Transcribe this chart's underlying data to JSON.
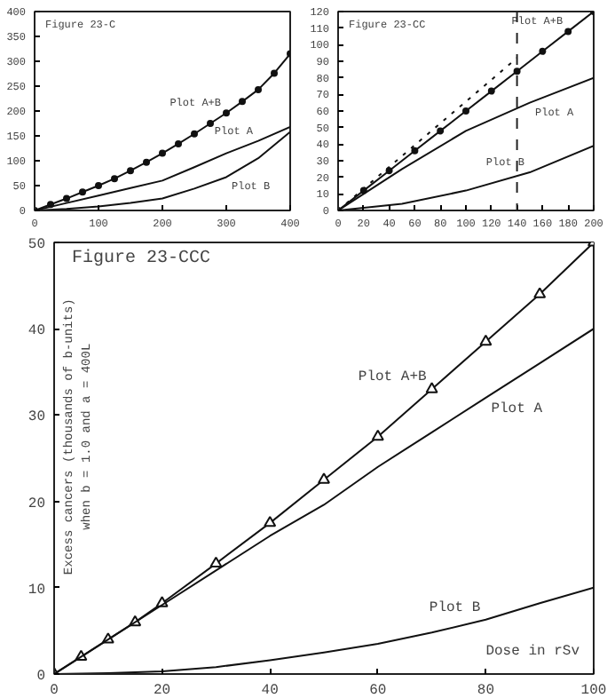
{
  "chart_data": [
    {
      "type": "line",
      "title": "Figure 23-C",
      "xlim": [
        0,
        400
      ],
      "ylim": [
        0,
        400
      ],
      "xticks": [
        0,
        100,
        200,
        300,
        400
      ],
      "yticks": [
        0,
        50,
        100,
        150,
        200,
        250,
        300,
        350,
        400
      ],
      "grid": false,
      "line_style": "solid",
      "series": [
        {
          "name": "Plot A+B",
          "color": "#111111",
          "marker": "circle",
          "x": [
            0,
            25,
            50,
            75,
            100,
            125,
            150,
            175,
            200,
            225,
            250,
            275,
            300,
            325,
            350,
            375,
            400
          ],
          "values": [
            0,
            12,
            24,
            37,
            50,
            64,
            80,
            97,
            115,
            134,
            154,
            175,
            196,
            219,
            243,
            276,
            315
          ]
        },
        {
          "name": "Plot A",
          "color": "#111111",
          "marker": "none",
          "x": [
            0,
            50,
            100,
            150,
            200,
            250,
            300,
            350,
            400
          ],
          "values": [
            0,
            15,
            30,
            45,
            60,
            87,
            115,
            140,
            168
          ]
        },
        {
          "name": "Plot B",
          "color": "#111111",
          "marker": "none",
          "x": [
            0,
            50,
            100,
            150,
            200,
            250,
            300,
            350,
            400
          ],
          "values": [
            0,
            3,
            8,
            15,
            24,
            44,
            67,
            105,
            158
          ]
        }
      ]
    },
    {
      "type": "line",
      "title": "Figure 23-CC",
      "xlim": [
        0,
        200
      ],
      "ylim": [
        0,
        120
      ],
      "xticks": [
        0,
        20,
        40,
        60,
        80,
        100,
        120,
        140,
        160,
        180,
        200
      ],
      "yticks": [
        0,
        10,
        20,
        30,
        40,
        50,
        60,
        70,
        80,
        90,
        100,
        110,
        120
      ],
      "grid": false,
      "line_style": "solid",
      "ref_lines": [
        {
          "axis": "x",
          "value": 140,
          "line_style": "dashed"
        }
      ],
      "series": [
        {
          "name": "Plot A+B",
          "color": "#111111",
          "marker": "circle",
          "x": [
            0,
            20,
            40,
            60,
            80,
            100,
            120,
            140,
            160,
            180,
            200
          ],
          "values": [
            0,
            12,
            24,
            36,
            48,
            60,
            72,
            84,
            96,
            108,
            120
          ]
        },
        {
          "color": "#111111",
          "marker": "none",
          "line_style": "dotted",
          "x": [
            0,
            140
          ],
          "values": [
            0,
            92
          ]
        },
        {
          "name": "Plot A",
          "color": "#111111",
          "marker": "none",
          "x": [
            0,
            50,
            100,
            150,
            200
          ],
          "values": [
            0,
            25,
            48,
            65,
            80
          ]
        },
        {
          "name": "Plot B",
          "color": "#111111",
          "marker": "none",
          "x": [
            0,
            50,
            100,
            150,
            200
          ],
          "values": [
            0,
            4,
            12,
            23,
            39
          ]
        }
      ]
    },
    {
      "type": "line",
      "title": "Figure 23-CCC",
      "ylabel": "Excess cancers (thousands of b-units)\nwhen b = 1.0 and a = 400L",
      "xlim": [
        0,
        100
      ],
      "ylim": [
        0,
        50
      ],
      "xticks": [
        0,
        20,
        40,
        60,
        80,
        100
      ],
      "yticks": [
        0,
        10,
        20,
        30,
        40,
        50
      ],
      "grid": false,
      "line_style": "solid",
      "annotations": [
        "Dose in rSv"
      ],
      "series": [
        {
          "name": "Plot A+B",
          "color": "#111111",
          "marker": "triangle",
          "x": [
            0,
            5,
            10,
            15,
            20,
            30,
            40,
            50,
            60,
            70,
            80,
            90,
            100
          ],
          "values": [
            0,
            2,
            4,
            6,
            8.2,
            12.8,
            17.5,
            22.5,
            27.5,
            33,
            38.5,
            44,
            50
          ]
        },
        {
          "name": "Plot A",
          "color": "#111111",
          "marker": "none",
          "x": [
            0,
            10,
            20,
            30,
            40,
            50,
            60,
            70,
            80,
            90,
            100
          ],
          "values": [
            0,
            4,
            8,
            12,
            16,
            19.6,
            24,
            28,
            32,
            36,
            40
          ]
        },
        {
          "name": "Plot B",
          "color": "#111111",
          "marker": "none",
          "x": [
            0,
            10,
            20,
            30,
            40,
            50,
            60,
            70,
            80,
            90,
            100
          ],
          "values": [
            0,
            0.1,
            0.3,
            0.8,
            1.6,
            2.5,
            3.5,
            4.8,
            6.3,
            8.2,
            10
          ]
        }
      ]
    }
  ]
}
